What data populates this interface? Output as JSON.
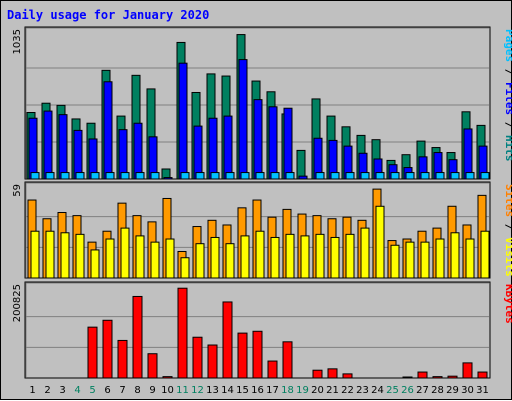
{
  "chart_data": {
    "type": "bar",
    "title": "Daily usage for January 2020",
    "categories": [
      "1",
      "2",
      "3",
      "4",
      "5",
      "6",
      "7",
      "8",
      "9",
      "10",
      "11",
      "12",
      "13",
      "14",
      "15",
      "16",
      "17",
      "18",
      "19",
      "20",
      "21",
      "22",
      "23",
      "24",
      "25",
      "26",
      "27",
      "28",
      "29",
      "30",
      "31"
    ],
    "weekend_days": [
      "4",
      "5",
      "11",
      "12",
      "18",
      "19",
      "25",
      "26"
    ],
    "panels": [
      {
        "id": "pages-files-hits",
        "ymax_label": "1035",
        "ymax": 1035,
        "side_labels": [
          {
            "text": "Pages",
            "color": "#00c0ff"
          },
          {
            "text": " / ",
            "color": "#000000"
          },
          {
            "text": "Files",
            "color": "#0000ff"
          },
          {
            "text": " / ",
            "color": "#000000"
          },
          {
            "text": "Hits",
            "color": "#008080"
          }
        ],
        "series": [
          {
            "name": "Hits",
            "color": "#008060",
            "values": [
              465,
              530,
              515,
              420,
              390,
              760,
              440,
              725,
              630,
              70,
              955,
              605,
              735,
              720,
              1010,
              685,
              610,
              455,
              200,
              560,
              440,
              365,
              305,
              275,
              130,
              170,
              265,
              220,
              185,
              470,
              375
            ]
          },
          {
            "name": "Files",
            "color": "#0000ff",
            "values": [
              425,
              475,
              450,
              340,
              280,
              680,
              345,
              390,
              295,
              10,
              810,
              370,
              425,
              440,
              835,
              555,
              505,
              495,
              20,
              285,
              270,
              230,
              180,
              140,
              100,
              80,
              155,
              185,
              135,
              350,
              230
            ]
          },
          {
            "name": "Pages",
            "color": "#00c0ff",
            "values": [
              45,
              45,
              45,
              45,
              45,
              45,
              45,
              45,
              45,
              0,
              45,
              45,
              45,
              45,
              45,
              45,
              45,
              45,
              0,
              45,
              45,
              45,
              45,
              45,
              45,
              45,
              45,
              45,
              45,
              45,
              45
            ]
          }
        ]
      },
      {
        "id": "sites-visits",
        "ymax_label": "59",
        "ymax": 59,
        "side_labels": [
          {
            "text": "Sites",
            "color": "#ff8000"
          },
          {
            "text": " / ",
            "color": "#000000"
          },
          {
            "text": "Visits",
            "color": "#ffff00"
          }
        ],
        "series": [
          {
            "name": "Visits",
            "color": "#ff9a00",
            "values": [
              50,
              38,
              42,
              40,
              23,
              30,
              48,
              40,
              36,
              51,
              17,
              33,
              37,
              34,
              45,
              50,
              39,
              44,
              41,
              40,
              38,
              39,
              37,
              57,
              24,
              25,
              30,
              32,
              46,
              34,
              53
            ]
          },
          {
            "name": "Sites",
            "color": "#ffff00",
            "values": [
              30,
              30,
              29,
              28,
              18,
              25,
              32,
              27,
              23,
              25,
              13,
              22,
              26,
              22,
              27,
              30,
              26,
              28,
              27,
              28,
              26,
              28,
              32,
              46,
              21,
              23,
              23,
              25,
              29,
              25,
              30
            ]
          }
        ]
      },
      {
        "id": "kbytes",
        "ymax_label": "200825",
        "ymax": 200825,
        "side_labels": [
          {
            "text": "KBytes",
            "color": "#ff0000"
          }
        ],
        "series": [
          {
            "name": "KBytes",
            "color": "#ff0000",
            "values": [
              0,
              0,
              0,
              0,
              111000,
              126000,
              82000,
              178000,
              53000,
              3000,
              196000,
              89000,
              72000,
              166000,
              98000,
              102000,
              37000,
              79000,
              0,
              17000,
              20000,
              9000,
              0,
              0,
              0,
              2000,
              13000,
              3000,
              4000,
              33000,
              13000
            ]
          }
        ]
      }
    ],
    "grid": true,
    "legend": "right-vertical"
  }
}
